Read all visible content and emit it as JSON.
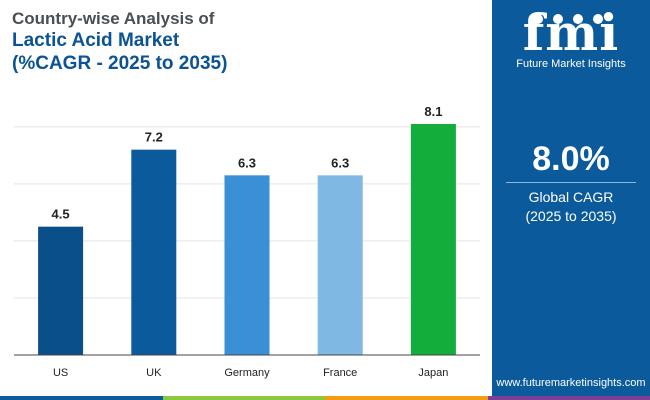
{
  "header": {
    "line1": "Country-wise Analysis of",
    "line2": "Lactic Acid Market",
    "line3": "(%CAGR - 2025 to 2035)"
  },
  "side_panel": {
    "logo_mark": "fmi",
    "logo_text": "Future Market Insights",
    "kpi_value": "8.0%",
    "kpi_label_line1": "Global CAGR",
    "kpi_label_line2": "(2025 to 2035)",
    "website": "www.futuremarketinsights.com",
    "background_color": "#0b5a9c"
  },
  "colors": {
    "strip": [
      "#0b5a9c",
      "#8dc63f",
      "#f39c12",
      "#7b3f98"
    ]
  },
  "chart_data": {
    "type": "bar",
    "categories": [
      "US",
      "UK",
      "Germany",
      "France",
      "Japan"
    ],
    "values": [
      4.5,
      7.2,
      6.3,
      6.3,
      8.1
    ],
    "data_labels": [
      "4.5",
      "7.2",
      "6.3",
      "6.3",
      "8.1"
    ],
    "colors": [
      "#0b4f8a",
      "#0b5a9c",
      "#3a8fd6",
      "#7fb8e3",
      "#13ad3c"
    ],
    "ylim": [
      0,
      8.1
    ],
    "gridlines": [
      2,
      4,
      6,
      8
    ],
    "grid": true,
    "title": "",
    "xlabel": "",
    "ylabel": ""
  }
}
